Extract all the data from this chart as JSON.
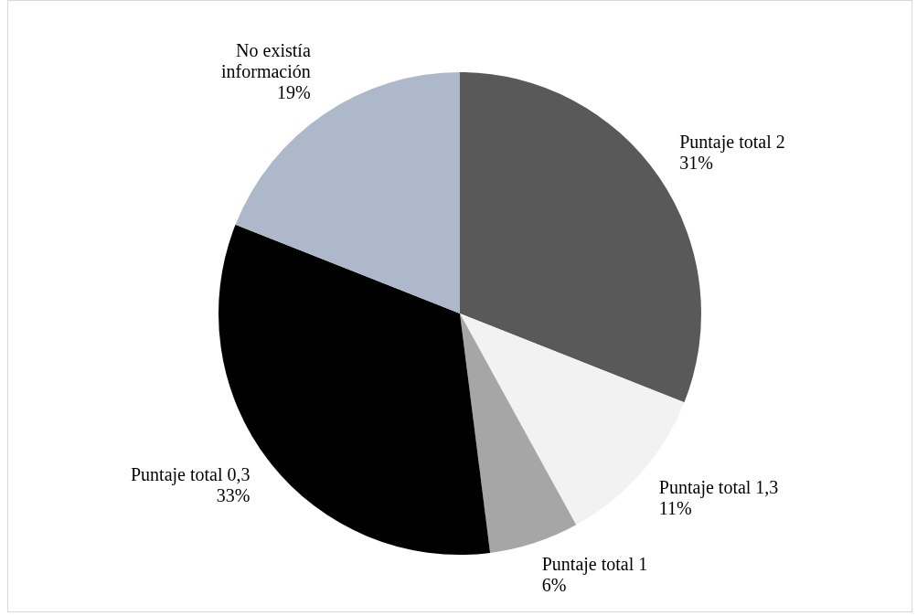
{
  "chart_data": {
    "type": "pie",
    "categories": [
      "Puntaje total 2",
      "Puntaje total 1,3",
      "Puntaje total 1",
      "Puntaje total 0,3",
      "No existía información"
    ],
    "values": [
      31,
      11,
      6,
      33,
      19
    ],
    "colors": [
      "#595959",
      "#f2f2f2",
      "#a6a6a6",
      "#000000",
      "#adb9ca"
    ],
    "value_labels": [
      "31%",
      "11%",
      "6%",
      "33%",
      "19%"
    ],
    "legend": false
  }
}
